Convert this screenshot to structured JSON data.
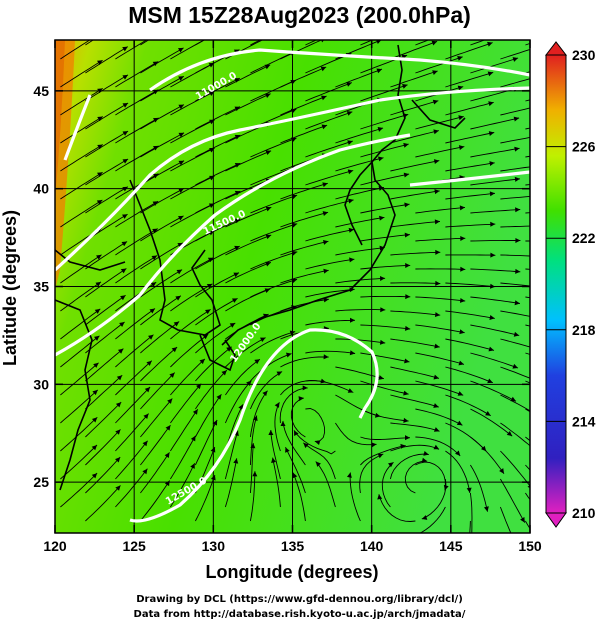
{
  "title": "MSM 15Z28Aug2023 (200.0hPa)",
  "x_axis": {
    "label": "Longitude (degrees)",
    "ticks": [
      "120",
      "125",
      "130",
      "135",
      "140",
      "145",
      "150"
    ],
    "range": [
      120,
      150
    ]
  },
  "y_axis": {
    "label": "Latitude  (degrees)",
    "ticks": [
      "25",
      "30",
      "35",
      "40",
      "45"
    ],
    "range": [
      22.4,
      47.6
    ]
  },
  "colorbar": {
    "ticks": [
      "230",
      "226",
      "222",
      "218",
      "214",
      "210"
    ],
    "range": [
      210,
      230
    ],
    "colors": [
      "#e020c0",
      "#2020c0",
      "#00c0ff",
      "#00e080",
      "#40e000",
      "#c0f000",
      "#f0c000",
      "#f06020",
      "#e02020"
    ]
  },
  "contour_labels": [
    "12500.0",
    "12000.0",
    "11500.0",
    "11000.0"
  ],
  "map_colors": {
    "field": "#40e000",
    "warm": "#f0a000",
    "coast": "#000000",
    "contour": "#ffffff"
  },
  "credits": {
    "line1": "Drawing by DCL (https://www.gfd-dennou.org/library/dcl/)",
    "line2": "Data from http://database.rish.kyoto-u.ac.jp/arch/jmadata/"
  }
}
